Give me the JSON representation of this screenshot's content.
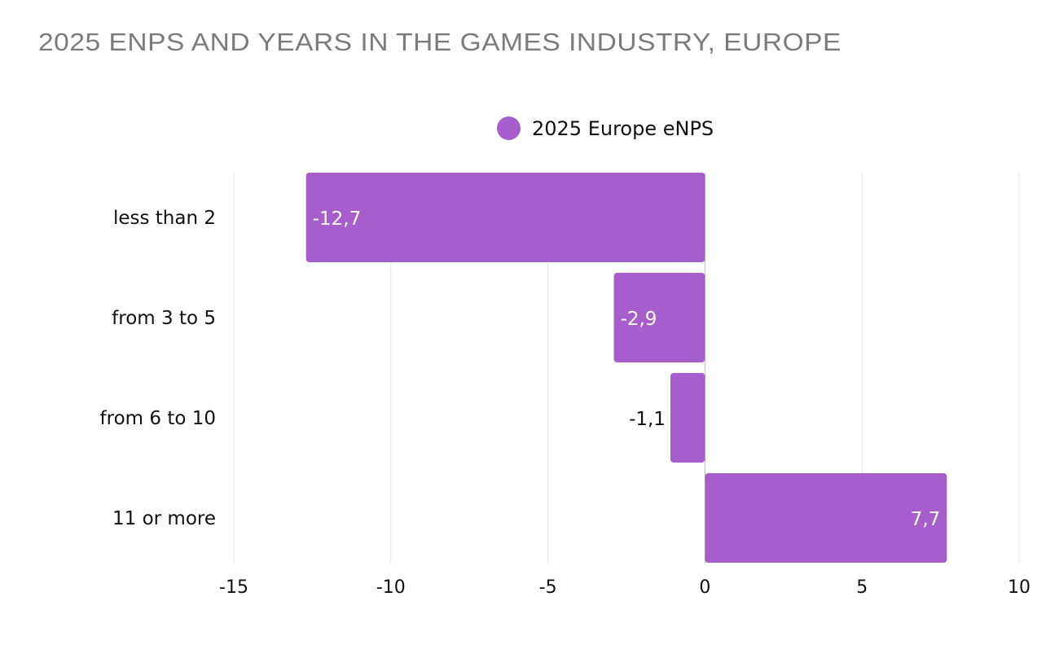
{
  "chart_data": {
    "type": "bar",
    "orientation": "horizontal",
    "title": "2025 ENPS AND YEARS IN THE GAMES INDUSTRY, EUROPE",
    "categories": [
      "less than 2",
      "from 3 to 5",
      "from 6 to 10",
      "11 or more"
    ],
    "series": [
      {
        "name": "2025 Europe eNPS",
        "values": [
          -12.7,
          -2.9,
          -1.1,
          7.7
        ],
        "labels": [
          "-12,7",
          "-2,9",
          "-1,1",
          "7,7"
        ],
        "color": "#a65ecd"
      }
    ],
    "xlim": [
      -15,
      10
    ],
    "xticks": [
      -15,
      -10,
      -5,
      0,
      5,
      10
    ],
    "xtick_labels": [
      "-15",
      "-10",
      "-5",
      "0",
      "5",
      "10"
    ],
    "grid": true,
    "legend": "top-center",
    "xlabel": "",
    "ylabel": ""
  }
}
